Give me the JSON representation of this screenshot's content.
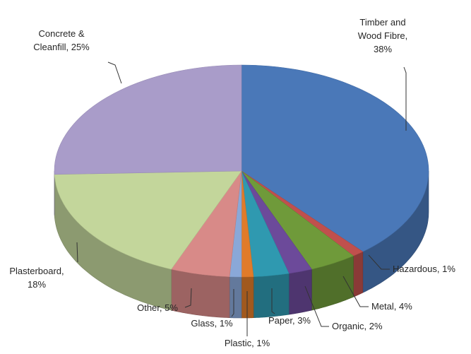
{
  "chart_data": {
    "type": "pie",
    "style": "3d",
    "start_angle": "12 o'clock",
    "direction": "clockwise",
    "slices": [
      {
        "label": "Timber and Wood Fibre",
        "value": 38,
        "pct_text": "38%",
        "color": "#4a78b8"
      },
      {
        "label": "Hazardous",
        "value": 1,
        "pct_text": "1%",
        "color": "#c0504d"
      },
      {
        "label": "Metal",
        "value": 4,
        "pct_text": "4%",
        "color": "#6f9a3a"
      },
      {
        "label": "Organic",
        "value": 2,
        "pct_text": "2%",
        "color": "#6c4a9a"
      },
      {
        "label": "Paper",
        "value": 3,
        "pct_text": "3%",
        "color": "#2f99b0"
      },
      {
        "label": "Plastic",
        "value": 1,
        "pct_text": "1%",
        "color": "#e07b2a"
      },
      {
        "label": "Glass",
        "value": 1,
        "pct_text": "1%",
        "color": "#8aa8d8"
      },
      {
        "label": "Other",
        "value": 5,
        "pct_text": "5%",
        "color": "#d88a88"
      },
      {
        "label": "Plasterboard",
        "value": 18,
        "pct_text": "18%",
        "color": "#c3d69b"
      },
      {
        "label": "Concrete & Cleanfill",
        "value": 25,
        "pct_text": "25%",
        "color": "#a99cc9"
      }
    ]
  }
}
